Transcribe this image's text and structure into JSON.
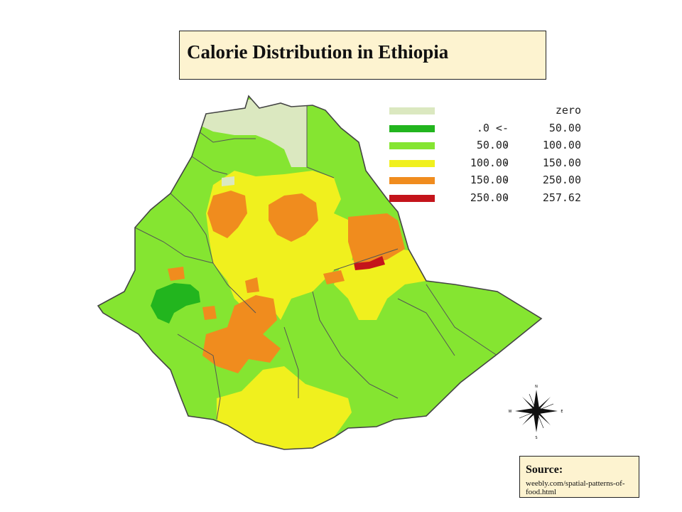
{
  "title": "Calorie Distribution in Ethiopia",
  "legend": [
    {
      "from": "",
      "sep": "",
      "to": "zero",
      "color": "#dbe8c0"
    },
    {
      "from": ".0 <-",
      "sep": "",
      "to": "50.00",
      "color": "#22b51e"
    },
    {
      "from": "50.00",
      "sep": "-",
      "to": "100.00",
      "color": "#85e531"
    },
    {
      "from": "100.00",
      "sep": "-",
      "to": "150.00",
      "color": "#f0f01e"
    },
    {
      "from": "150.00",
      "sep": "-",
      "to": "250.00",
      "color": "#f08c1e"
    },
    {
      "from": "250.00",
      "sep": "-",
      "to": "257.62",
      "color": "#c4141b"
    }
  ],
  "compass": {
    "n": "N",
    "s": "S",
    "e": "E",
    "w": "W"
  },
  "source": {
    "label": "Source:",
    "text": "weebly.com/spatial-patterns-of-food.html"
  }
}
